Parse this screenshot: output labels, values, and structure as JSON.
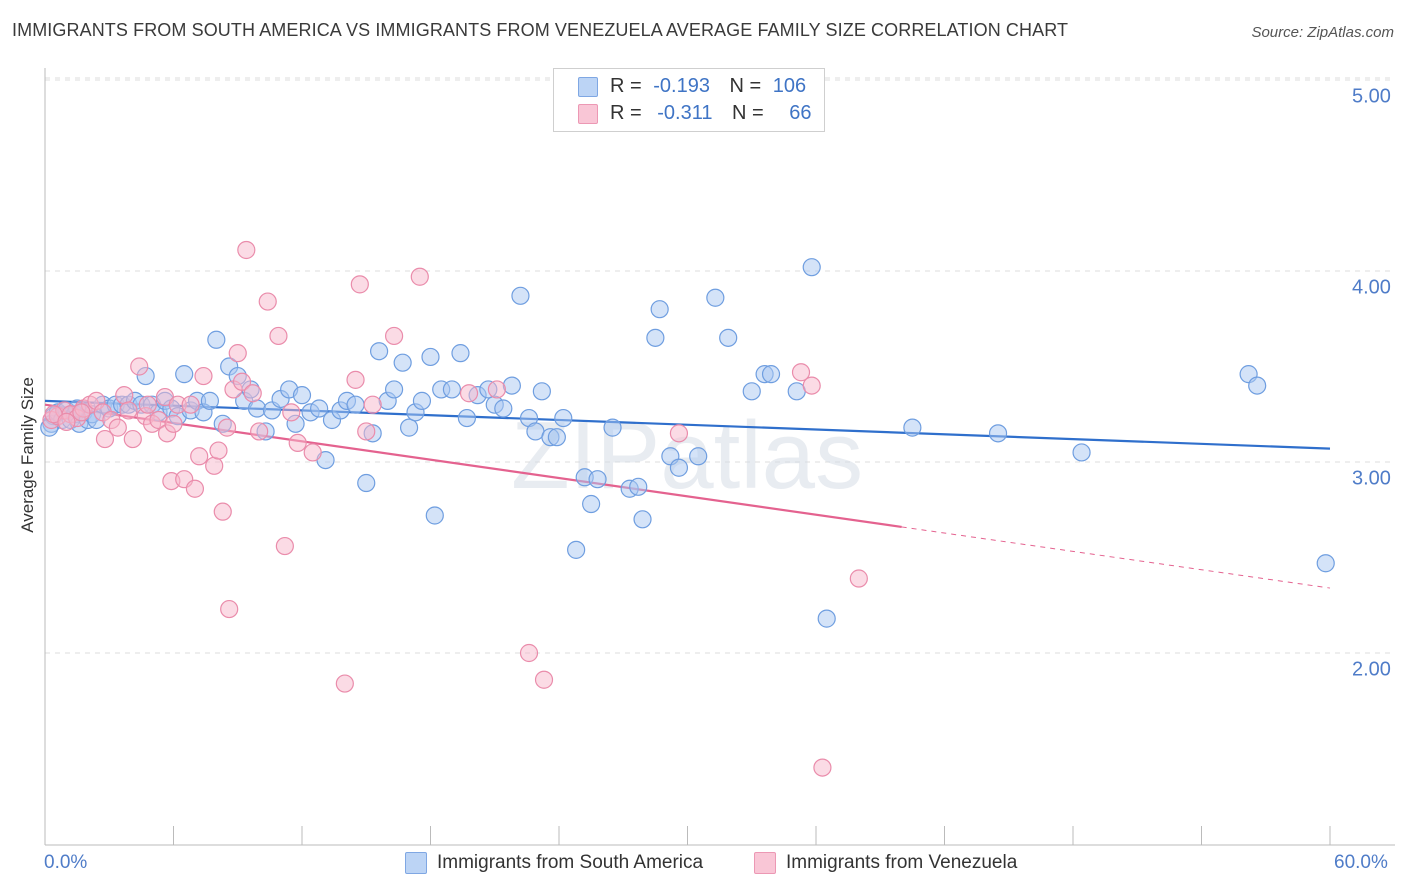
{
  "title": "IMMIGRANTS FROM SOUTH AMERICA VS IMMIGRANTS FROM VENEZUELA AVERAGE FAMILY SIZE CORRELATION CHART",
  "source": "Source: ZipAtlas.com",
  "watermark": "ZIPatlas",
  "legend": {
    "r_label": "R =",
    "n_label": "N =",
    "rows": [
      {
        "r": "-0.193",
        "n": "106"
      },
      {
        "r": "-0.311",
        "n": "66"
      }
    ]
  },
  "colors": {
    "blue_fill": "#a9c8f2",
    "blue_stroke": "#6f9ee0",
    "blue_line": "#2f6fcc",
    "pink_fill": "#f7b8cc",
    "pink_stroke": "#ea8cab",
    "pink_line": "#e4628f",
    "tick_label": "#4f7cc8",
    "grid": "#dcdcdc"
  },
  "chart_data": {
    "type": "scatter",
    "title": "IMMIGRANTS FROM SOUTH AMERICA VS IMMIGRANTS FROM VENEZUELA AVERAGE FAMILY SIZE CORRELATION CHART",
    "xlabel": "",
    "ylabel": "Average Family Size",
    "xlim": [
      0,
      60
    ],
    "ylim": [
      1.0,
      5.1
    ],
    "x_tick_labels": [
      "0.0%",
      "60.0%"
    ],
    "y_ticks": [
      2.0,
      3.0,
      4.0,
      5.0
    ],
    "y_tick_labels": [
      "2.00",
      "3.00",
      "4.00",
      "5.00"
    ],
    "grid": true,
    "legend_position": "top-center",
    "series": [
      {
        "name": "Immigrants from South America",
        "r": -0.193,
        "n": 106,
        "trend": {
          "x": [
            0,
            60
          ],
          "y": [
            3.32,
            3.07
          ]
        },
        "points": [
          [
            0.3,
            3.2
          ],
          [
            0.4,
            3.24
          ],
          [
            0.6,
            3.26
          ],
          [
            0.8,
            3.22
          ],
          [
            1.0,
            3.27
          ],
          [
            1.2,
            3.22
          ],
          [
            1.4,
            3.25
          ],
          [
            1.6,
            3.2
          ],
          [
            1.8,
            3.26
          ],
          [
            2.0,
            3.22
          ],
          [
            2.2,
            3.25
          ],
          [
            2.4,
            3.22
          ],
          [
            2.7,
            3.3
          ],
          [
            3.0,
            3.28
          ],
          [
            3.3,
            3.3
          ],
          [
            3.6,
            3.3
          ],
          [
            3.9,
            3.3
          ],
          [
            4.2,
            3.32
          ],
          [
            4.5,
            3.3
          ],
          [
            4.7,
            3.45
          ],
          [
            5.0,
            3.3
          ],
          [
            5.3,
            3.26
          ],
          [
            5.6,
            3.32
          ],
          [
            5.9,
            3.28
          ],
          [
            6.2,
            3.24
          ],
          [
            6.5,
            3.46
          ],
          [
            6.8,
            3.27
          ],
          [
            7.1,
            3.32
          ],
          [
            7.4,
            3.26
          ],
          [
            7.7,
            3.32
          ],
          [
            8.0,
            3.64
          ],
          [
            8.3,
            3.2
          ],
          [
            8.6,
            3.5
          ],
          [
            9.0,
            3.45
          ],
          [
            9.3,
            3.32
          ],
          [
            9.6,
            3.38
          ],
          [
            9.9,
            3.28
          ],
          [
            10.3,
            3.16
          ],
          [
            10.6,
            3.27
          ],
          [
            11.0,
            3.33
          ],
          [
            11.4,
            3.38
          ],
          [
            11.7,
            3.2
          ],
          [
            12.0,
            3.35
          ],
          [
            12.4,
            3.26
          ],
          [
            12.8,
            3.28
          ],
          [
            13.1,
            3.01
          ],
          [
            13.4,
            3.22
          ],
          [
            13.8,
            3.27
          ],
          [
            14.1,
            3.32
          ],
          [
            14.5,
            3.3
          ],
          [
            15.0,
            2.89
          ],
          [
            15.3,
            3.15
          ],
          [
            15.6,
            3.58
          ],
          [
            16.0,
            3.32
          ],
          [
            16.3,
            3.38
          ],
          [
            16.7,
            3.52
          ],
          [
            17.0,
            3.18
          ],
          [
            17.3,
            3.26
          ],
          [
            17.6,
            3.32
          ],
          [
            18.0,
            3.55
          ],
          [
            18.2,
            2.72
          ],
          [
            18.5,
            3.38
          ],
          [
            19.0,
            3.38
          ],
          [
            19.4,
            3.57
          ],
          [
            19.7,
            3.23
          ],
          [
            20.2,
            3.35
          ],
          [
            20.7,
            3.38
          ],
          [
            21.0,
            3.3
          ],
          [
            21.4,
            3.28
          ],
          [
            21.8,
            3.4
          ],
          [
            22.2,
            3.87
          ],
          [
            22.6,
            3.23
          ],
          [
            22.9,
            3.16
          ],
          [
            23.2,
            3.37
          ],
          [
            23.6,
            3.13
          ],
          [
            23.9,
            3.13
          ],
          [
            24.2,
            3.23
          ],
          [
            24.8,
            2.54
          ],
          [
            25.2,
            2.92
          ],
          [
            25.5,
            2.78
          ],
          [
            25.8,
            2.91
          ],
          [
            26.5,
            3.18
          ],
          [
            27.3,
            2.86
          ],
          [
            27.7,
            2.87
          ],
          [
            27.9,
            2.7
          ],
          [
            28.5,
            3.65
          ],
          [
            28.7,
            3.8
          ],
          [
            29.2,
            3.03
          ],
          [
            29.6,
            2.97
          ],
          [
            30.5,
            3.03
          ],
          [
            31.3,
            3.86
          ],
          [
            31.9,
            3.65
          ],
          [
            33.0,
            3.37
          ],
          [
            33.6,
            3.46
          ],
          [
            33.9,
            3.46
          ],
          [
            35.1,
            3.37
          ],
          [
            35.8,
            4.02
          ],
          [
            36.5,
            2.18
          ],
          [
            40.5,
            3.18
          ],
          [
            44.5,
            3.15
          ],
          [
            48.4,
            3.05
          ],
          [
            56.2,
            3.46
          ],
          [
            56.6,
            3.4
          ],
          [
            59.8,
            2.47
          ],
          [
            0.2,
            3.18
          ],
          [
            1.5,
            3.28
          ]
        ]
      },
      {
        "name": "Immigrants from Venezuela",
        "r": -0.311,
        "n": 66,
        "trend": {
          "x": [
            0,
            40
          ],
          "y": [
            3.3,
            2.66
          ]
        },
        "trend_dashed": {
          "x": [
            40,
            60
          ],
          "y": [
            2.66,
            2.34
          ]
        },
        "points": [
          [
            0.3,
            3.22
          ],
          [
            0.6,
            3.24
          ],
          [
            0.9,
            3.27
          ],
          [
            1.2,
            3.25
          ],
          [
            1.5,
            3.23
          ],
          [
            1.8,
            3.28
          ],
          [
            2.1,
            3.3
          ],
          [
            2.4,
            3.32
          ],
          [
            2.7,
            3.26
          ],
          [
            2.8,
            3.12
          ],
          [
            3.1,
            3.22
          ],
          [
            3.4,
            3.18
          ],
          [
            3.7,
            3.35
          ],
          [
            3.9,
            3.27
          ],
          [
            4.1,
            3.12
          ],
          [
            4.4,
            3.5
          ],
          [
            4.7,
            3.24
          ],
          [
            5.0,
            3.2
          ],
          [
            5.3,
            3.22
          ],
          [
            5.6,
            3.34
          ],
          [
            5.7,
            3.15
          ],
          [
            5.9,
            2.9
          ],
          [
            6.2,
            3.3
          ],
          [
            6.5,
            2.91
          ],
          [
            6.8,
            3.3
          ],
          [
            7.0,
            2.86
          ],
          [
            7.2,
            3.03
          ],
          [
            7.4,
            3.45
          ],
          [
            7.9,
            2.98
          ],
          [
            8.1,
            3.06
          ],
          [
            8.3,
            2.74
          ],
          [
            8.6,
            2.23
          ],
          [
            8.8,
            3.38
          ],
          [
            9.0,
            3.57
          ],
          [
            9.2,
            3.42
          ],
          [
            9.4,
            4.11
          ],
          [
            9.7,
            3.36
          ],
          [
            10.0,
            3.16
          ],
          [
            10.4,
            3.84
          ],
          [
            10.9,
            3.66
          ],
          [
            11.2,
            2.56
          ],
          [
            11.5,
            3.26
          ],
          [
            11.8,
            3.1
          ],
          [
            12.5,
            3.05
          ],
          [
            14.0,
            1.84
          ],
          [
            14.5,
            3.43
          ],
          [
            14.7,
            3.93
          ],
          [
            15.0,
            3.16
          ],
          [
            15.3,
            3.3
          ],
          [
            16.3,
            3.66
          ],
          [
            17.5,
            3.97
          ],
          [
            19.8,
            3.36
          ],
          [
            21.1,
            3.38
          ],
          [
            22.6,
            2.0
          ],
          [
            23.3,
            1.86
          ],
          [
            29.6,
            3.15
          ],
          [
            35.3,
            3.47
          ],
          [
            35.8,
            3.4
          ],
          [
            36.3,
            1.4
          ],
          [
            38.0,
            2.39
          ],
          [
            0.4,
            3.25
          ],
          [
            1.0,
            3.21
          ],
          [
            1.7,
            3.26
          ],
          [
            4.8,
            3.3
          ],
          [
            6.0,
            3.2
          ],
          [
            8.5,
            3.18
          ]
        ]
      }
    ]
  },
  "bottom_legend": [
    {
      "label": "Immigrants from South America"
    },
    {
      "label": "Immigrants from Venezuela"
    }
  ]
}
